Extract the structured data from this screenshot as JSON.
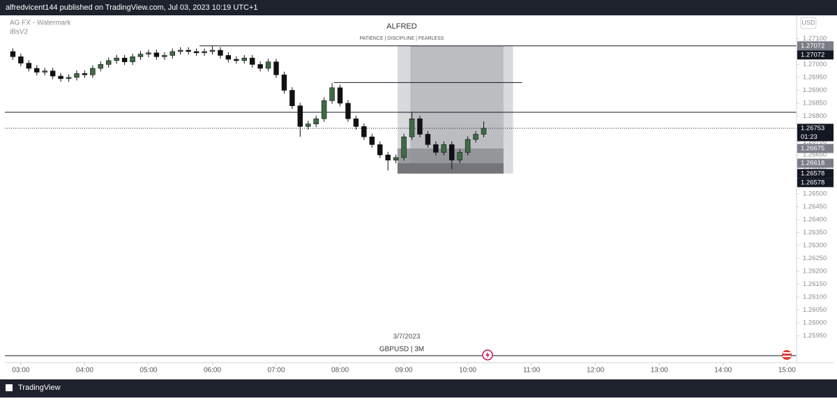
{
  "header": {
    "text": "alfredvicent144 published on TradingView.com, Jul 03, 2023 10:19 UTC+1"
  },
  "chart_data": {
    "type": "candlestick",
    "indicator": "AG FX - Watermark",
    "indicator2": "iBsV2",
    "watermark_title": "ALFRED",
    "watermark_subtitle": "PATIENCE | DISCIPLINE | FEARLESS",
    "currency": "USD",
    "date_label": "3/7/2023",
    "symbol_label": "GBPUSD | 3M",
    "countdown": "01:23",
    "up_color": "#3d6b45",
    "down_color": "#111111",
    "xlim": [
      2.75,
      15.15
    ],
    "ylim": [
      1.2586,
      1.2719
    ],
    "xticks": [
      {
        "value": 3,
        "label": "03:00"
      },
      {
        "value": 4,
        "label": "04:00"
      },
      {
        "value": 5,
        "label": "05:00"
      },
      {
        "value": 6,
        "label": "06:00"
      },
      {
        "value": 7,
        "label": "07:00"
      },
      {
        "value": 8,
        "label": "08:00"
      },
      {
        "value": 9,
        "label": "09:00"
      },
      {
        "value": 10,
        "label": "10:00"
      },
      {
        "value": 11,
        "label": "11:00"
      },
      {
        "value": 12,
        "label": "12:00"
      },
      {
        "value": 13,
        "label": "13:00"
      },
      {
        "value": 14,
        "label": "14:00"
      },
      {
        "value": 15,
        "label": "15:00"
      }
    ],
    "yticks": [
      {
        "value": 1.2595,
        "label": "1.25950"
      },
      {
        "value": 1.26,
        "label": "1.26000"
      },
      {
        "value": 1.2605,
        "label": "1.26050"
      },
      {
        "value": 1.261,
        "label": "1.26100"
      },
      {
        "value": 1.2615,
        "label": "1.26150"
      },
      {
        "value": 1.262,
        "label": "1.26200"
      },
      {
        "value": 1.2625,
        "label": "1.26250"
      },
      {
        "value": 1.263,
        "label": "1.26300"
      },
      {
        "value": 1.2635,
        "label": "1.26350"
      },
      {
        "value": 1.264,
        "label": "1.26400"
      },
      {
        "value": 1.2645,
        "label": "1.26450"
      },
      {
        "value": 1.265,
        "label": "1.26500"
      },
      {
        "value": 1.2655,
        "label": "1.26550"
      },
      {
        "value": 1.266,
        "label": "1.26600"
      },
      {
        "value": 1.2665,
        "label": "1.26650"
      },
      {
        "value": 1.267,
        "label": "1.26700"
      },
      {
        "value": 1.2675,
        "label": "1.26750"
      },
      {
        "value": 1.268,
        "label": "1.26800"
      },
      {
        "value": 1.2685,
        "label": "1.26850"
      },
      {
        "value": 1.269,
        "label": "1.26900"
      },
      {
        "value": 1.2695,
        "label": "1.26950"
      },
      {
        "value": 1.27,
        "label": "1.27000"
      },
      {
        "value": 1.2705,
        "label": "1.27050"
      },
      {
        "value": 1.271,
        "label": "1.27100"
      }
    ],
    "x": [
      2.875,
      3,
      3.125,
      3.25,
      3.375,
      3.5,
      3.625,
      3.75,
      3.875,
      4,
      4.125,
      4.25,
      4.375,
      4.5,
      4.625,
      4.75,
      4.875,
      5,
      5.125,
      5.25,
      5.375,
      5.5,
      5.625,
      5.75,
      5.875,
      6,
      6.125,
      6.25,
      6.375,
      6.5,
      6.625,
      6.75,
      6.875,
      7,
      7.125,
      7.25,
      7.375,
      7.5,
      7.625,
      7.75,
      7.875,
      8,
      8.125,
      8.25,
      8.375,
      8.5,
      8.625,
      8.75,
      8.875,
      9,
      9.125,
      9.25,
      9.375,
      9.5,
      9.625,
      9.75,
      9.875,
      10,
      10.125,
      10.25
    ],
    "open": [
      1.2705,
      1.2703,
      1.27005,
      1.26985,
      1.2697,
      1.26975,
      1.26955,
      1.26945,
      1.2695,
      1.26965,
      1.2696,
      1.26985,
      1.27,
      1.27015,
      1.27025,
      1.2701,
      1.2703,
      1.2704,
      1.27045,
      1.2703,
      1.27035,
      1.2705,
      1.27055,
      1.2705,
      1.27045,
      1.2705,
      1.27055,
      1.27035,
      1.2702,
      1.27015,
      1.27025,
      1.27,
      1.26985,
      1.2701,
      1.2696,
      1.269,
      1.2684,
      1.2676,
      1.2677,
      1.2679,
      1.2686,
      1.2691,
      1.2685,
      1.2679,
      1.2676,
      1.2672,
      1.2669,
      1.2665,
      1.2663,
      1.2664,
      1.2672,
      1.2679,
      1.2673,
      1.2669,
      1.2666,
      1.2669,
      1.2663,
      1.2666,
      1.2671,
      1.2673
    ],
    "high": [
      1.27062,
      1.27042,
      1.27017,
      1.26997,
      1.26987,
      1.26987,
      1.26967,
      1.26962,
      1.26977,
      1.26977,
      1.26997,
      1.27012,
      1.27027,
      1.27037,
      1.27037,
      1.27042,
      1.27052,
      1.27057,
      1.27057,
      1.27047,
      1.27062,
      1.27067,
      1.27067,
      1.27062,
      1.27062,
      1.27072,
      1.27067,
      1.27047,
      1.27032,
      1.27037,
      1.27037,
      1.27012,
      1.27022,
      1.27022,
      1.26972,
      1.26912,
      1.26852,
      1.26782,
      1.26802,
      1.26872,
      1.26928,
      1.26922,
      1.26862,
      1.26802,
      1.26772,
      1.26732,
      1.26702,
      1.26662,
      1.26652,
      1.26732,
      1.26815,
      1.26802,
      1.26742,
      1.26702,
      1.26702,
      1.26702,
      1.26672,
      1.26722,
      1.26742,
      1.2678
    ],
    "low": [
      1.27018,
      1.26993,
      1.26973,
      1.26958,
      1.26958,
      1.26943,
      1.26933,
      1.26933,
      1.26938,
      1.26948,
      1.26948,
      1.26973,
      1.26988,
      1.27003,
      1.26998,
      1.26998,
      1.27018,
      1.27028,
      1.27018,
      1.27018,
      1.27023,
      1.27038,
      1.27038,
      1.27033,
      1.27033,
      1.27038,
      1.27023,
      1.27008,
      1.27003,
      1.27003,
      1.26988,
      1.26973,
      1.26973,
      1.26948,
      1.26888,
      1.26828,
      1.2672,
      1.26748,
      1.26758,
      1.26778,
      1.26848,
      1.26838,
      1.26778,
      1.26748,
      1.26708,
      1.26678,
      1.26638,
      1.2659,
      1.26618,
      1.26628,
      1.26708,
      1.26718,
      1.26678,
      1.26648,
      1.26648,
      1.26595,
      1.26618,
      1.26648,
      1.26698,
      1.26718
    ],
    "close": [
      1.2703,
      1.27005,
      1.26985,
      1.2697,
      1.26975,
      1.26955,
      1.26945,
      1.2695,
      1.26965,
      1.2696,
      1.26985,
      1.27,
      1.27015,
      1.27025,
      1.2701,
      1.2703,
      1.2704,
      1.27045,
      1.2703,
      1.27035,
      1.2705,
      1.27055,
      1.2705,
      1.27045,
      1.2705,
      1.27055,
      1.27035,
      1.2702,
      1.27015,
      1.27025,
      1.27,
      1.26985,
      1.2701,
      1.2696,
      1.269,
      1.2684,
      1.2676,
      1.2677,
      1.2679,
      1.2686,
      1.2691,
      1.2685,
      1.2679,
      1.2676,
      1.2672,
      1.2669,
      1.2665,
      1.2663,
      1.2664,
      1.2672,
      1.2679,
      1.2673,
      1.2669,
      1.2666,
      1.2669,
      1.2663,
      1.2666,
      1.2671,
      1.2673,
      1.26753
    ],
    "levels": [
      {
        "value": 1.27072,
        "from": 5.8
      },
      {
        "value": 1.2693,
        "from": 7.9,
        "to": 10.85
      },
      {
        "value": 1.26815
      }
    ],
    "current_price": 1.26753,
    "position": {
      "x": [
        8.9,
        10.71
      ],
      "inner_x": [
        9.1,
        10.56
      ],
      "top": 1.27072,
      "bottom": 1.26578,
      "levels": [
        1.26675,
        1.26618
      ]
    },
    "price_tags": [
      {
        "value": 1.27072,
        "color": "#7a7d86"
      },
      {
        "value": 1.27072,
        "color": "#131722"
      },
      {
        "value": 1.26753,
        "color": "#131722"
      },
      {
        "value": 1.26675,
        "color": "#7a7d86"
      },
      {
        "value": 1.26618,
        "color": "#7a7d86"
      },
      {
        "value": 1.26578,
        "color": "#131722"
      },
      {
        "value": 1.26578,
        "color": "#131722"
      }
    ]
  },
  "footer": {
    "brand": "TradingView"
  }
}
